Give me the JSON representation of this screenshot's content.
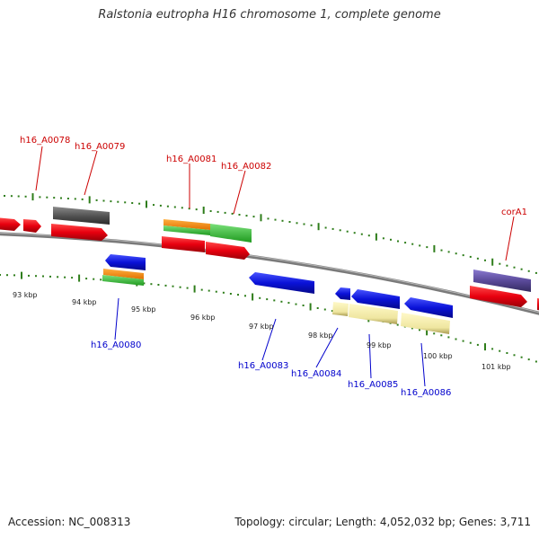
{
  "title": "Ralstonia eutropha H16 chromosome 1, complete genome",
  "footer": {
    "accession": "Accession: NC_008313",
    "summary": "Topology: circular; Length: 4,052,032 bp; Genes: 3,711"
  },
  "colors": {
    "top_label": "#cc0000",
    "bottom_label": "#0000cc",
    "tick_mark": "#2e7d1a",
    "backbone": "#808080",
    "red_gene": "#e8000f",
    "blue_gene": "#0a12d8",
    "grey_gene": "#555555",
    "orange_gene": "#ff8c00",
    "green_gene": "#33c433",
    "yellow_gene": "#efe6a0",
    "purple_gene": "#5a4a9a"
  },
  "ticks": [
    "93 kbp",
    "94 kbp",
    "95 kbp",
    "96 kbp",
    "97 kbp",
    "98 kbp",
    "99 kbp",
    "100 kbp",
    "101 kbp"
  ],
  "top_genes": [
    "h16_A0078",
    "h16_A0079",
    "h16_A0081",
    "h16_A0082",
    "corA1"
  ],
  "bottom_genes": [
    "h16_A0080",
    "h16_A0083",
    "h16_A0084",
    "h16_A0085",
    "h16_A0086"
  ]
}
